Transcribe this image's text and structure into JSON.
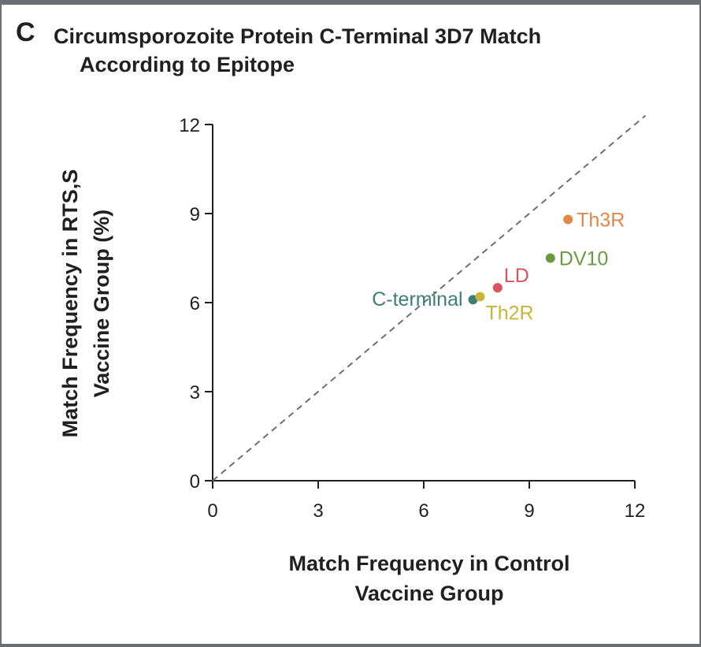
{
  "figure": {
    "panel_letter": "C",
    "title_line1": "Circumsporozoite Protein C-Terminal 3D7 Match",
    "title_line2": "According to Epitope"
  },
  "chart_data": {
    "type": "scatter",
    "xlabel_line1": "Match Frequency in Control",
    "xlabel_line2": "Vaccine Group",
    "ylabel_line1": "Match Frequency in RTS,S",
    "ylabel_line2": "Vaccine Group (%)",
    "xlim": [
      0,
      12
    ],
    "ylim": [
      0,
      12
    ],
    "xticks": [
      0,
      3,
      6,
      9,
      12
    ],
    "yticks": [
      0,
      3,
      6,
      9,
      12
    ],
    "reference_line": "identity diagonal, dashed",
    "grid": false,
    "points": [
      {
        "label": "Th3R",
        "x": 10.1,
        "y": 8.8,
        "color": "#e0874a",
        "label_side": "right"
      },
      {
        "label": "DV10",
        "x": 9.6,
        "y": 7.5,
        "color": "#6a9a3f",
        "label_side": "right"
      },
      {
        "label": "LD",
        "x": 8.1,
        "y": 6.5,
        "color": "#d6545c",
        "label_side": "above-right"
      },
      {
        "label": "C-terminal",
        "x": 7.4,
        "y": 6.1,
        "color": "#3d8073",
        "label_side": "left"
      },
      {
        "label": "Th2R",
        "x": 7.6,
        "y": 6.2,
        "color": "#c8b53a",
        "label_side": "below-right"
      }
    ]
  }
}
